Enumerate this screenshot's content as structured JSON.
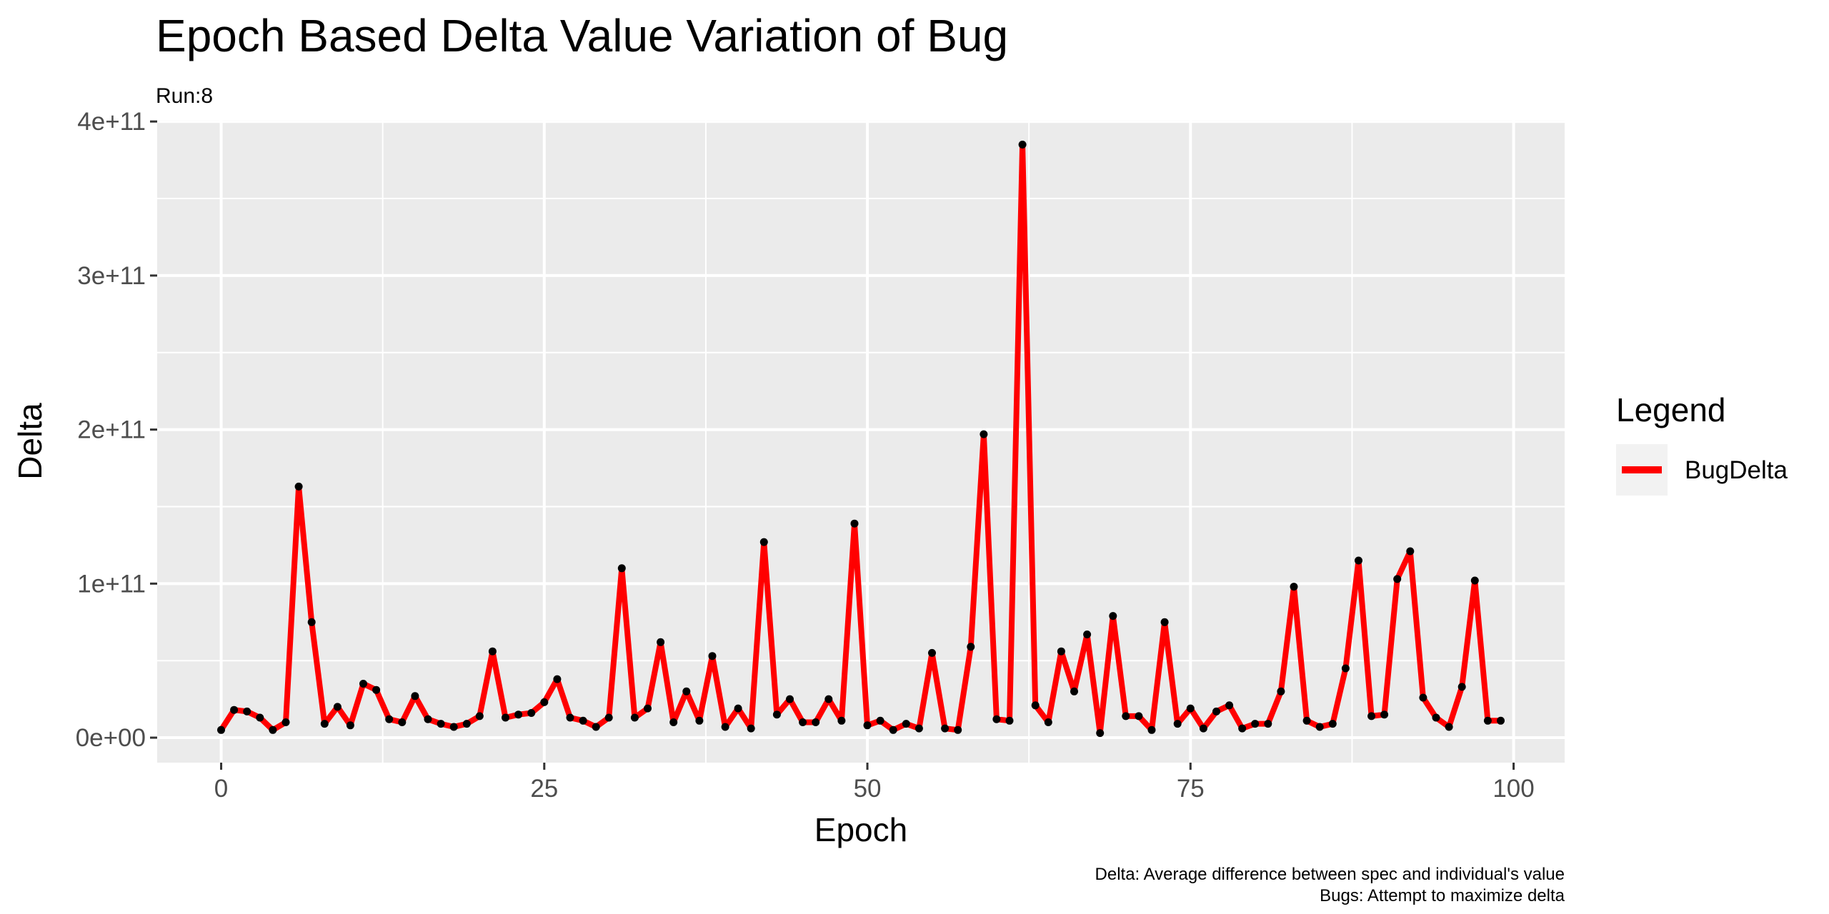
{
  "chart_data": {
    "type": "line",
    "title": "Epoch Based Delta Value Variation of Bug",
    "subtitle": "Run:8",
    "xlabel": "Epoch",
    "ylabel": "Delta",
    "xlim": [
      -4.95,
      103.95
    ],
    "ylim": [
      -16200000000.0,
      401000000000.0
    ],
    "x_ticks": [
      0,
      25,
      50,
      75,
      100
    ],
    "x_tick_labels": [
      "0",
      "25",
      "50",
      "75",
      "100"
    ],
    "y_ticks": [
      0,
      100000000000,
      200000000000,
      300000000000,
      400000000000
    ],
    "y_tick_labels": [
      "0e+00",
      "1e+11",
      "2e+11",
      "3e+11",
      "4e+11"
    ],
    "grid": true,
    "legend": {
      "title": "Legend",
      "position": "right"
    },
    "caption": [
      "Delta: Average difference between spec and individual's value",
      "Bugs: Attempt to maximize delta"
    ],
    "series": [
      {
        "name": "BugDelta",
        "color": "#ff0000",
        "x": [
          0,
          1,
          2,
          3,
          4,
          5,
          6,
          7,
          8,
          9,
          10,
          11,
          12,
          13,
          14,
          15,
          16,
          17,
          18,
          19,
          20,
          21,
          22,
          23,
          24,
          25,
          26,
          27,
          28,
          29,
          30,
          31,
          32,
          33,
          34,
          35,
          36,
          37,
          38,
          39,
          40,
          41,
          42,
          43,
          44,
          45,
          46,
          47,
          48,
          49,
          50,
          51,
          52,
          53,
          54,
          55,
          56,
          57,
          58,
          59,
          60,
          61,
          62,
          63,
          64,
          65,
          66,
          67,
          68,
          69,
          70,
          71,
          72,
          73,
          74,
          75,
          76,
          77,
          78,
          79,
          80,
          81,
          82,
          83,
          84,
          85,
          86,
          87,
          88,
          89,
          90,
          91,
          92,
          93,
          94,
          95,
          96,
          97,
          98,
          99
        ],
        "values": [
          5000000000.0,
          18000000000.0,
          17000000000.0,
          13000000000.0,
          5000000000.0,
          10000000000.0,
          163000000000.0,
          75000000000.0,
          9000000000.0,
          20000000000.0,
          8000000000.0,
          35000000000.0,
          31000000000.0,
          12000000000.0,
          10000000000.0,
          27000000000.0,
          12000000000.0,
          9000000000.0,
          7000000000.0,
          9000000000.0,
          14000000000.0,
          56000000000.0,
          13000000000.0,
          15000000000.0,
          16000000000.0,
          23000000000.0,
          38000000000.0,
          13000000000.0,
          11000000000.0,
          7000000000.0,
          13000000000.0,
          110000000000.0,
          13000000000.0,
          19000000000.0,
          62000000000.0,
          10000000000.0,
          30000000000.0,
          11000000000.0,
          53000000000.0,
          7000000000.0,
          19000000000.0,
          6000000000.0,
          127000000000.0,
          15000000000.0,
          25000000000.0,
          10000000000.0,
          10000000000.0,
          25000000000.0,
          11000000000.0,
          139000000000.0,
          8000000000.0,
          11000000000.0,
          5000000000.0,
          9000000000.0,
          6000000000.0,
          55000000000.0,
          6000000000.0,
          5000000000.0,
          59000000000.0,
          197000000000.0,
          12000000000.0,
          11000000000.0,
          385000000000.0,
          21000000000.0,
          10000000000.0,
          56000000000.0,
          30000000000.0,
          67000000000.0,
          3000000000.0,
          79000000000.0,
          14000000000.0,
          14000000000.0,
          5000000000.0,
          75000000000.0,
          9000000000.0,
          19000000000.0,
          6000000000.0,
          17000000000.0,
          21000000000.0,
          6000000000.0,
          9000000000.0,
          9000000000.0,
          30000000000.0,
          98000000000.0,
          11000000000.0,
          7000000000.0,
          9000000000.0,
          45000000000.0,
          115000000000.0,
          14000000000.0,
          15000000000.0,
          103000000000.0,
          121000000000.0,
          26000000000.0,
          13000000000.0,
          7000000000.0,
          33000000000.0,
          102000000000.0,
          11000000000.0,
          11000000000.0
        ]
      }
    ]
  },
  "colors": {
    "panel_background": "#ebebeb",
    "grid_major": "#ffffff",
    "series_line": "#ff0000",
    "points": "#000000",
    "tick_text": "#4d4d4d"
  }
}
